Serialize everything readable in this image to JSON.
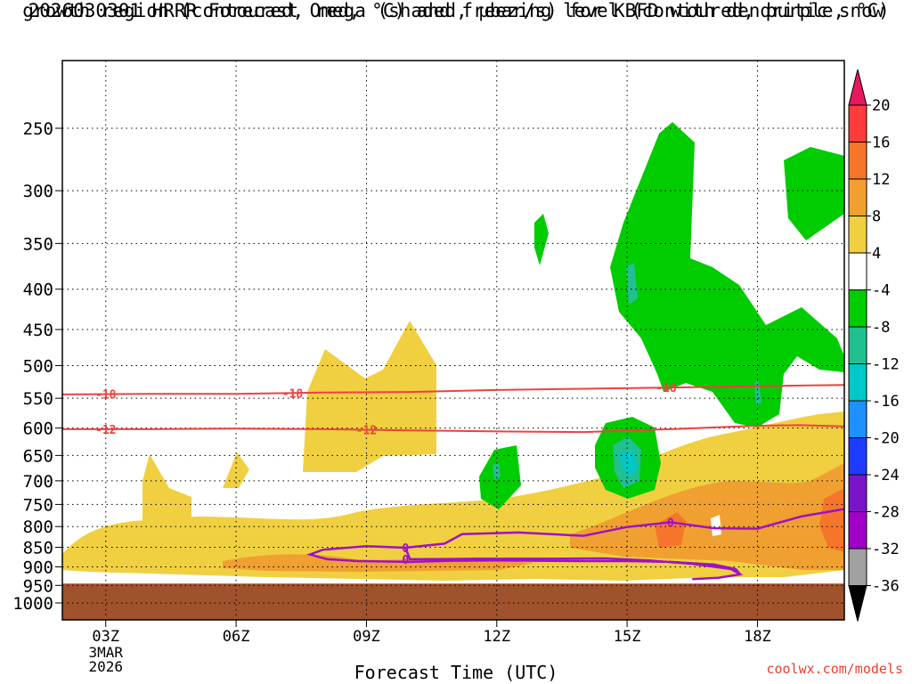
{
  "title": {
    "line1": "2026030301 HRRR Forecast Omega (shaded, µbar/s) for KBFD with dendritic snow",
    "line2": "growth region (contoured, red, °C) and freezing level (contoured, purple, °C)"
  },
  "credit": "coolwx.com/models",
  "chart_data": {
    "type": "time-height contour",
    "xlabel": "Forecast Time (UTC)",
    "ylabel": "",
    "x_hours": [
      2,
      20
    ],
    "x_ticks": [
      {
        "hour": 3,
        "label": "03Z",
        "sub": [
          "3MAR",
          "2026"
        ]
      },
      {
        "hour": 6,
        "label": "06Z",
        "sub": []
      },
      {
        "hour": 9,
        "label": "09Z",
        "sub": []
      },
      {
        "hour": 12,
        "label": "12Z",
        "sub": []
      },
      {
        "hour": 15,
        "label": "15Z",
        "sub": []
      },
      {
        "hour": 18,
        "label": "18Z",
        "sub": []
      }
    ],
    "y_levels_hPa": [
      250,
      300,
      350,
      400,
      450,
      500,
      550,
      600,
      650,
      700,
      750,
      800,
      850,
      900,
      950,
      1000
    ],
    "surface_pressure_hPa": 945,
    "colorbar": {
      "labels": [
        "20",
        "16",
        "12",
        "8",
        "4",
        "-4",
        "-8",
        "-12",
        "-16",
        "-20",
        "-24",
        "-28",
        "-32",
        "-36"
      ],
      "colors": [
        "#e8185e",
        "#ff3b3b",
        "#f5762a",
        "#f0a030",
        "#f0d040",
        "#ffffff",
        "#00cc00",
        "#20c090",
        "#00c8c8",
        "#1e90ff",
        "#1e3cff",
        "#7a14c8",
        "#a000c8",
        "#a0a0a0",
        "#000000"
      ]
    },
    "contour_labels": {
      "red": [
        "-18",
        "-18",
        "-18",
        "-12",
        "-12"
      ],
      "purple": [
        "0",
        "0",
        "0"
      ]
    },
    "red_contours": [
      {
        "label": "-18",
        "points": [
          [
            2,
            544
          ],
          [
            4,
            543
          ],
          [
            6,
            543
          ],
          [
            8,
            541
          ],
          [
            10,
            540
          ],
          [
            12,
            537
          ],
          [
            14,
            535
          ],
          [
            16,
            533
          ],
          [
            18,
            531
          ],
          [
            20,
            529
          ]
        ],
        "label_hours": [
          3,
          7.3,
          15.9
        ]
      },
      {
        "label": "-12",
        "points": [
          [
            2,
            602
          ],
          [
            4,
            602
          ],
          [
            6,
            601
          ],
          [
            8,
            602
          ],
          [
            10,
            604
          ],
          [
            12,
            606
          ],
          [
            14,
            607
          ],
          [
            16,
            602
          ],
          [
            18,
            596
          ],
          [
            19,
            595
          ],
          [
            20,
            597
          ]
        ],
        "label_hours": [
          3,
          9
        ]
      }
    ],
    "purple_contour": {
      "label": "0",
      "points": [
        [
          9.9,
          851
        ],
        [
          9,
          847
        ],
        [
          8,
          856
        ],
        [
          7.7,
          868
        ],
        [
          8.1,
          880
        ],
        [
          8.8,
          885
        ],
        [
          10,
          887
        ],
        [
          11,
          884
        ],
        [
          12,
          883
        ],
        [
          13,
          884
        ],
        [
          14,
          885
        ],
        [
          15,
          885
        ],
        [
          16,
          887
        ],
        [
          17,
          894
        ],
        [
          17.5,
          906
        ],
        [
          17.6,
          920
        ],
        [
          17.1,
          929
        ],
        [
          16.5,
          933
        ],
        [
          17.1,
          929
        ],
        [
          17.6,
          920
        ],
        [
          17.4,
          906
        ],
        [
          16.5,
          892
        ],
        [
          15.5,
          883
        ],
        [
          14.5,
          878
        ],
        [
          13,
          879
        ],
        [
          11.5,
          879
        ],
        [
          10,
          880
        ],
        [
          9.9,
          851
        ],
        [
          10.8,
          841
        ],
        [
          11.2,
          818
        ],
        [
          12.5,
          814
        ],
        [
          14,
          822
        ],
        [
          15,
          801
        ],
        [
          16,
          790
        ],
        [
          17,
          804
        ],
        [
          18,
          805
        ],
        [
          19,
          777
        ],
        [
          20,
          760
        ]
      ],
      "label_hours": [
        9.9,
        9.9,
        16
      ]
    }
  }
}
